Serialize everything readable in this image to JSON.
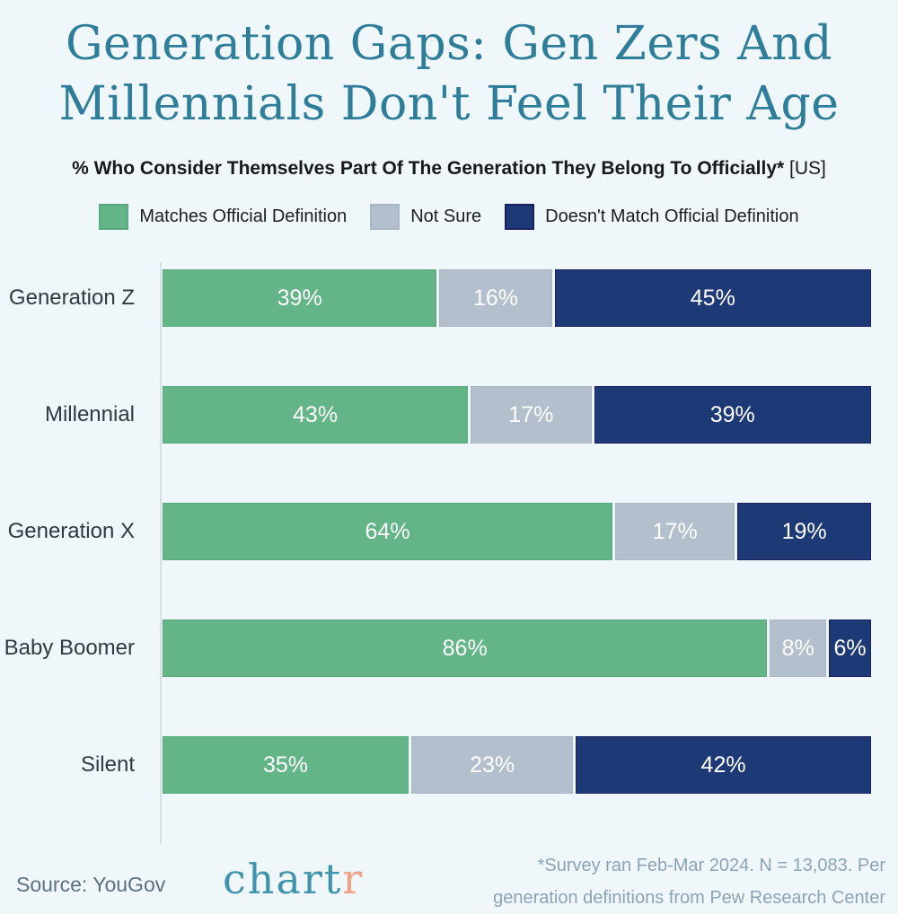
{
  "page": {
    "background": "#eff7fa"
  },
  "header": {
    "title_line1": "Generation Gaps: Gen Zers And",
    "title_line2": "Millennials Don't Feel Their Age",
    "title_color": "#2e7e9a",
    "subtitle_bold": "% Who Consider Themselves Part Of The Generation They Belong To Officially*",
    "subtitle_light": " [US]"
  },
  "legend": {
    "items": [
      {
        "label": "Matches Official Definition",
        "color": "#63b487",
        "border": "#57aa7c"
      },
      {
        "label": "Not Sure",
        "color": "#b3bfcd",
        "border": "#a8b6c6"
      },
      {
        "label": "Doesn't Match Official Definition",
        "color": "#1e3a76",
        "border": "#1a1f5e"
      }
    ]
  },
  "chart_data": {
    "type": "bar",
    "orientation": "horizontal",
    "stacked": true,
    "normalized_to_100": true,
    "categories": [
      "Generation Z",
      "Millennial",
      "Generation X",
      "Baby Boomer",
      "Silent"
    ],
    "series": [
      {
        "name": "Matches Official Definition",
        "color": "#63b487",
        "border": "#57aa7c",
        "values": [
          39,
          43,
          64,
          86,
          35
        ]
      },
      {
        "name": "Not Sure",
        "color": "#b3bfcd",
        "border": "#a8b6c6",
        "values": [
          16,
          17,
          17,
          8,
          23
        ]
      },
      {
        "name": "Doesn't Match Official Definition",
        "color": "#1e3a76",
        "border": "#1a1f5e",
        "values": [
          45,
          39,
          19,
          6,
          42
        ]
      }
    ],
    "value_suffix": "%",
    "xlim": [
      0,
      100
    ],
    "title": "Generation Gaps: Gen Zers And Millennials Don't Feel Their Age",
    "subtitle": "% Who Consider Themselves Part Of The Generation They Belong To Officially* [US]",
    "legend_position": "top",
    "grid": false,
    "value_labels": "inside-white"
  },
  "footer": {
    "source": "Source: YouGov",
    "logo_part1": "chart",
    "logo_part2": "r",
    "footnote_line1": "*Survey ran Feb-Mar 2024. N = 13,083. Per",
    "footnote_line2": "generation definitions from Pew Research Center"
  }
}
